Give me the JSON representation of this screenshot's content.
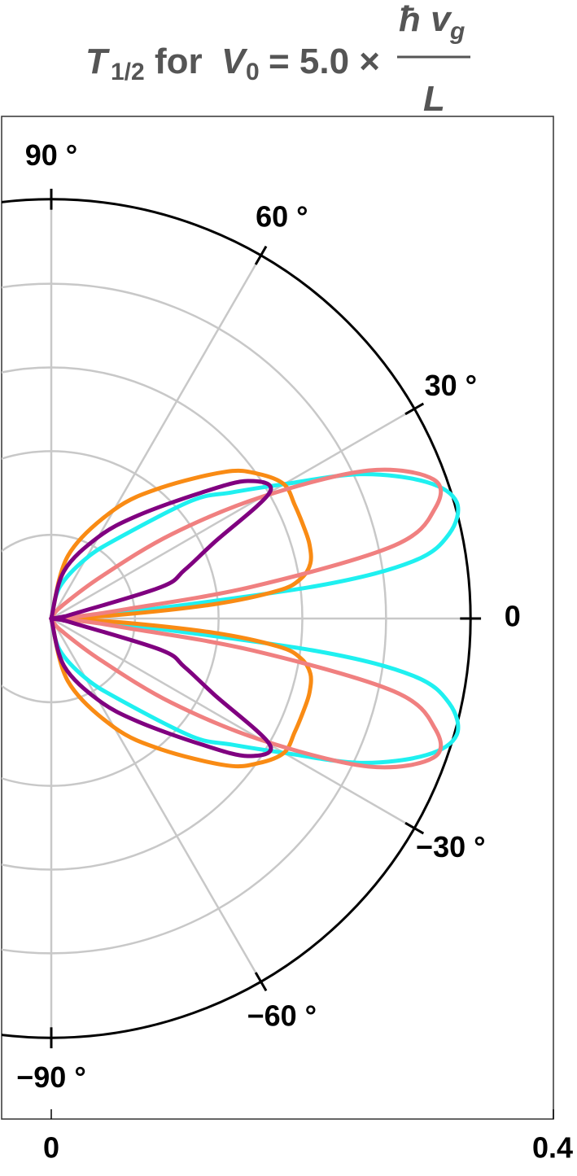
{
  "chart_data": {
    "type": "polar",
    "title": {
      "lhs": "T",
      "lhs_sub": "1/2",
      "for": "for",
      "var": "V",
      "var_sub": "0",
      "eq": "= 5.0 ×",
      "num": "ħ v",
      "num_sub": "g",
      "den": "L"
    },
    "theta": [
      -90,
      -75,
      -60,
      -50,
      -40,
      -35,
      -30,
      -25,
      -20,
      -16,
      -12,
      -9,
      -7,
      -5,
      -3,
      0,
      3,
      5,
      7,
      9,
      12,
      16,
      20,
      25,
      30,
      35,
      40,
      50,
      60,
      75,
      90
    ],
    "series": [
      {
        "color": "#1ff0f0",
        "values": [
          0,
          0.026,
          0.055,
          0.084,
          0.146,
          0.175,
          0.214,
          0.272,
          0.318,
          0.336,
          0.324,
          0.292,
          0.214,
          0.068,
          0.026,
          0,
          0.026,
          0.068,
          0.214,
          0.292,
          0.324,
          0.336,
          0.318,
          0.272,
          0.214,
          0.175,
          0.146,
          0.084,
          0.055,
          0.026,
          0
        ]
      },
      {
        "color": "#f98b14",
        "values": [
          0,
          0.052,
          0.1,
          0.136,
          0.182,
          0.201,
          0.214,
          0.214,
          0.214,
          0.214,
          0.211,
          0.201,
          0.182,
          0.13,
          0.052,
          0,
          0.052,
          0.13,
          0.182,
          0.201,
          0.211,
          0.214,
          0.214,
          0.214,
          0.214,
          0.201,
          0.182,
          0.136,
          0.1,
          0.052,
          0
        ]
      },
      {
        "color": "#f08080",
        "values": [
          0,
          0,
          0.003,
          0.013,
          0.052,
          0.117,
          0.194,
          0.279,
          0.324,
          0.318,
          0.279,
          0.162,
          0.058,
          0.026,
          0.01,
          0,
          0.01,
          0.026,
          0.058,
          0.162,
          0.279,
          0.318,
          0.324,
          0.279,
          0.194,
          0.117,
          0.052,
          0.013,
          0.003,
          0,
          0
        ]
      },
      {
        "color": "#800080",
        "values": [
          0,
          0.039,
          0.075,
          0.107,
          0.156,
          0.191,
          0.201,
          0.143,
          0.113,
          0.091,
          0.019,
          0.01,
          0.003,
          0,
          0,
          0,
          0,
          0,
          0.003,
          0.01,
          0.019,
          0.091,
          0.113,
          0.143,
          0.201,
          0.191,
          0.156,
          0.107,
          0.075,
          0.039,
          0
        ]
      }
    ],
    "thetaticks": [
      {
        "value": 90,
        "label": "90 °"
      },
      {
        "value": 60,
        "label": "60 °"
      },
      {
        "value": 30,
        "label": "30 °"
      },
      0,
      {
        "value": -30,
        "label": "−30 °"
      },
      {
        "value": -60,
        "label": "−60 °"
      },
      {
        "value": -90,
        "label": "−90 °"
      }
    ],
    "rlim": [
      0,
      0.334
    ],
    "rgrid": [
      0.0667,
      0.1333,
      0.2,
      0.2667
    ],
    "xlim": [
      0,
      0.4
    ],
    "xticks": [
      0,
      0.4
    ],
    "grid": true
  }
}
